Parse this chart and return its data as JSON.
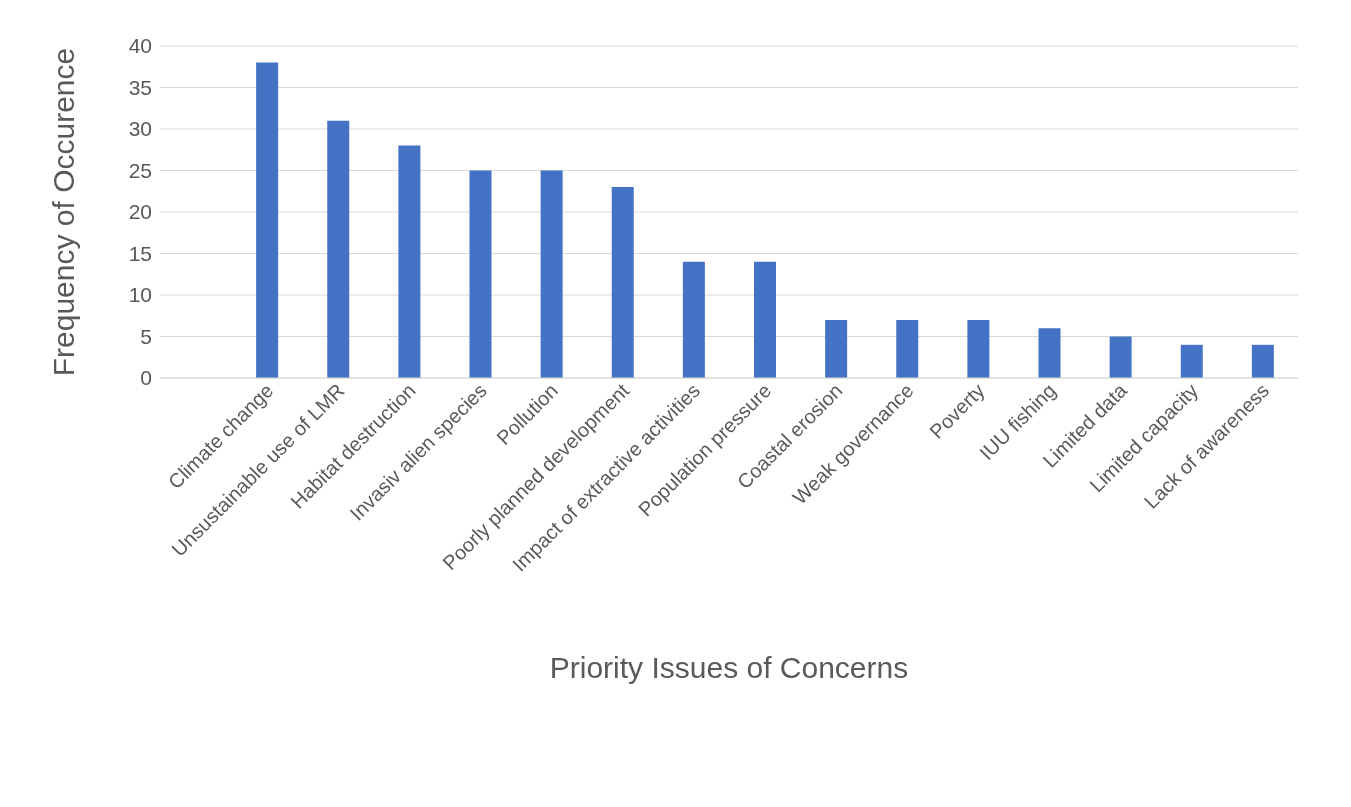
{
  "chart_data": {
    "type": "bar",
    "xlabel": "Priority Issues of Concerns",
    "ylabel": "Frequency of Occurence",
    "categories": [
      null,
      "Climate change",
      "Unsustainable use of LMR",
      "Habitat destruction",
      "Invasiv alien species",
      "Pollution",
      "Poorly planned development",
      "Impact of extractive activities",
      "Population pressure",
      "Coastal erosion",
      "Weak governance",
      "Poverty",
      "IUU fishing",
      "Limited data",
      "Limited capacity",
      "Lack of awareness"
    ],
    "values": [
      null,
      38,
      31,
      28,
      25,
      25,
      23,
      14,
      14,
      7,
      7,
      7,
      6,
      5,
      4,
      4
    ],
    "color": "#4472c4",
    "ylim": [
      0,
      40
    ],
    "yticks": [
      0,
      5,
      10,
      15,
      20,
      25,
      30,
      35,
      40
    ],
    "grid": "y",
    "legend": false
  }
}
